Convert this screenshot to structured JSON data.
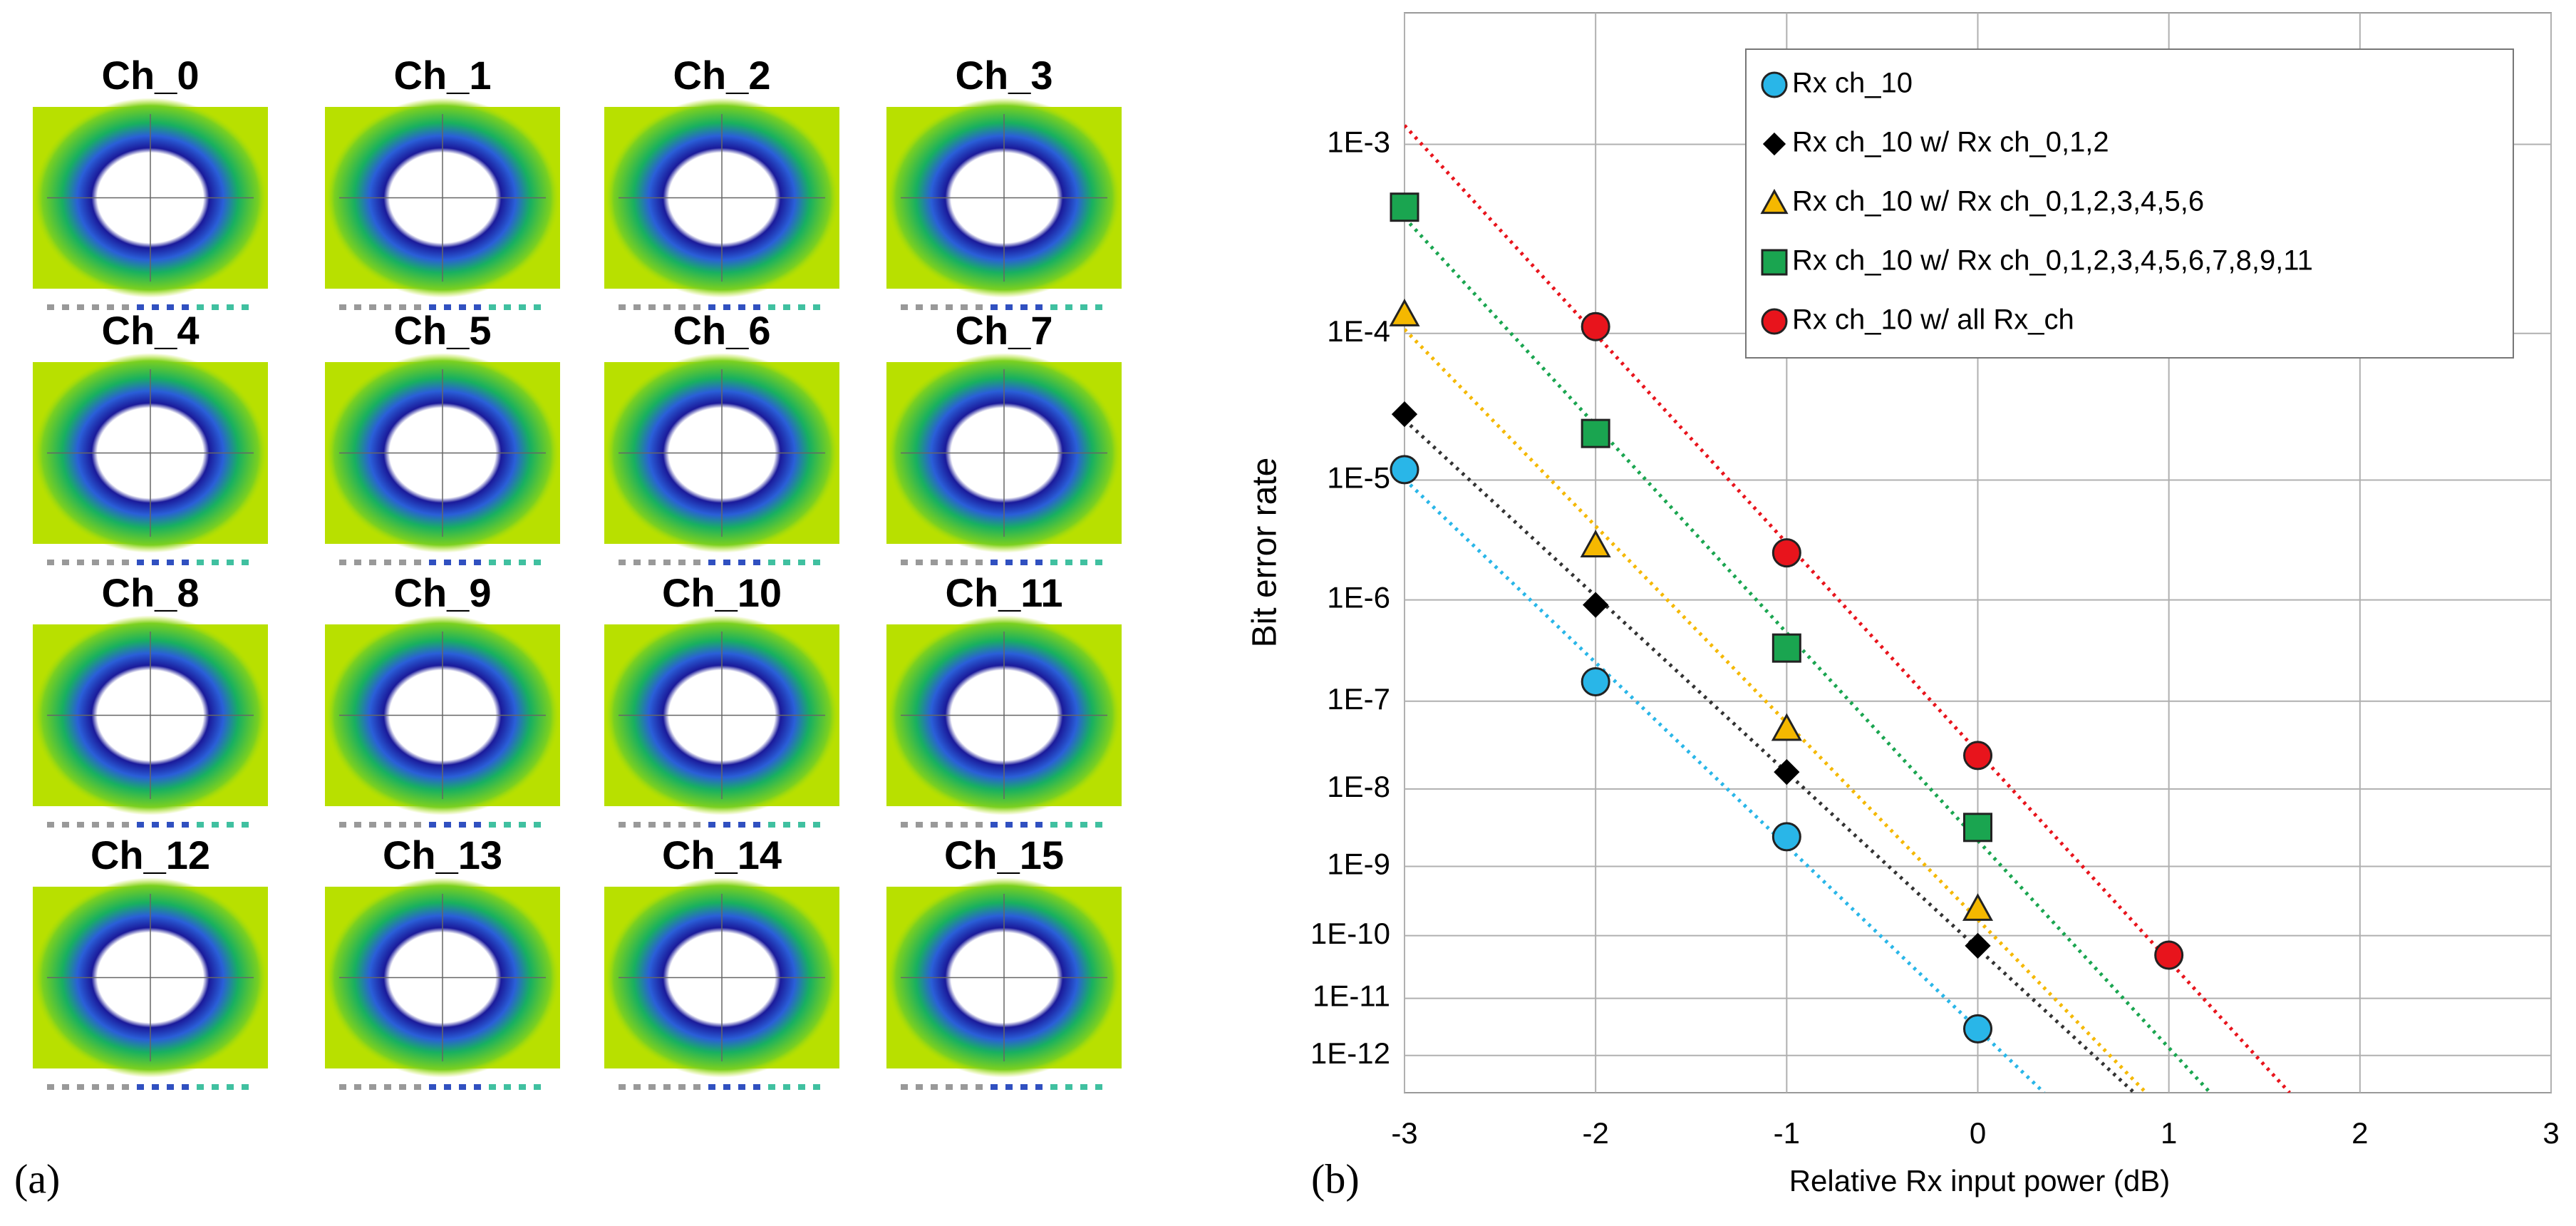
{
  "panel_a": {
    "label": "(a)",
    "titles": [
      "Ch_0",
      "Ch_1",
      "Ch_2",
      "Ch_3",
      "Ch_4",
      "Ch_5",
      "Ch_6",
      "Ch_7",
      "Ch_8",
      "Ch_9",
      "Ch_10",
      "Ch_11",
      "Ch_12",
      "Ch_13",
      "Ch_14",
      "Ch_15"
    ]
  },
  "chart_data": {
    "type": "scatter",
    "label": "(b)",
    "x_label": "Relative Rx input power (dB)",
    "y_label": "Bit error rate",
    "yscale": "loglog",
    "grid": true,
    "legend": "upper right",
    "xlim": [
      -3,
      3
    ],
    "xticks": [
      -3,
      -2,
      -1,
      0,
      1,
      2,
      3
    ],
    "ylim": [
      0.0035,
      2e-13
    ],
    "yticks": [
      {
        "value": 0.001,
        "label": "1E-3"
      },
      {
        "value": 0.0001,
        "label": "1E-4"
      },
      {
        "value": 1e-05,
        "label": "1E-5"
      },
      {
        "value": 1e-06,
        "label": "1E-6"
      },
      {
        "value": 1e-07,
        "label": "1E-7"
      },
      {
        "value": 1e-08,
        "label": "1E-8"
      },
      {
        "value": 1e-09,
        "label": "1E-9"
      },
      {
        "value": 1e-10,
        "label": "1E-10"
      },
      {
        "value": 1e-11,
        "label": "1E-11"
      },
      {
        "value": 1e-12,
        "label": "1E-12"
      }
    ],
    "x": [
      -3,
      -2,
      -1,
      0,
      1
    ],
    "series": [
      {
        "name": "Rx ch_10",
        "color": "#29b6e8",
        "marker": "circle",
        "values": [
          1.2e-05,
          1.6e-07,
          2.5e-09,
          3e-12,
          null
        ]
      },
      {
        "name": "Rx ch_10 w/ Rx ch_0,1,2",
        "color": "#000000",
        "marker": "diamond",
        "values": [
          3e-05,
          9e-07,
          1.6e-08,
          7e-11,
          null
        ]
      },
      {
        "name": "Rx ch_10 w/ Rx ch_0,1,2,3,4,5,6",
        "color": "#f5b800",
        "marker": "triangle",
        "values": [
          0.00013,
          3e-06,
          5e-08,
          2.5e-10,
          null
        ]
      },
      {
        "name": "Rx ch_10 w/ Rx ch_0,1,2,3,4,5,6,7,8,9,11",
        "color": "#1aa550",
        "marker": "square",
        "values": [
          0.0005,
          2.2e-05,
          3.5e-07,
          3.3e-09,
          null
        ]
      },
      {
        "name": "Rx ch_10 w/ all Rx_ch",
        "color": "#e8141c",
        "marker": "circle",
        "values": [
          null,
          0.00011,
          2.6e-06,
          2.5e-08,
          5e-11
        ]
      }
    ]
  }
}
